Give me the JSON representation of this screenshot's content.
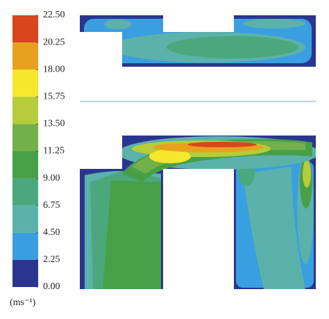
{
  "chart_data": {
    "type": "contour",
    "colorbar": {
      "ticks": [
        {
          "value": 0,
          "label": "0.00"
        },
        {
          "value": 2.25,
          "label": "2.25"
        },
        {
          "value": 4.5,
          "label": "4.50"
        },
        {
          "value": 6.75,
          "label": "6.75"
        },
        {
          "value": 9,
          "label": "9.00"
        },
        {
          "value": 11.25,
          "label": "11.25"
        },
        {
          "value": 13.5,
          "label": "13.50"
        },
        {
          "value": 15.75,
          "label": "15.75"
        },
        {
          "value": 18,
          "label": "18.00"
        },
        {
          "value": 20.25,
          "label": "20.25"
        },
        {
          "value": 22.5,
          "label": "22.50"
        }
      ],
      "lim": [
        0,
        22.5
      ],
      "colors": [
        "#2b3590",
        "#3a9fe0",
        "#5bb2aa",
        "#4aa87c",
        "#47a047",
        "#74b04a",
        "#b6cc3a",
        "#f5e72b",
        "#e8a11f",
        "#d8461d"
      ],
      "unit": "(ms⁻¹)"
    }
  }
}
